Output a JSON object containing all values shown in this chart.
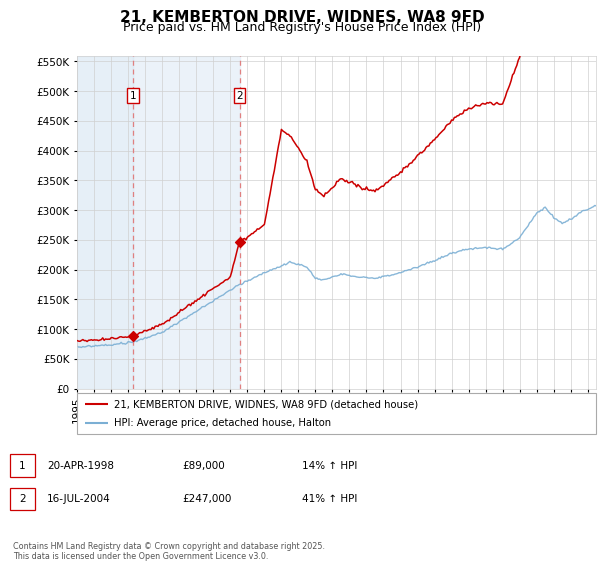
{
  "title": "21, KEMBERTON DRIVE, WIDNES, WA8 9FD",
  "subtitle": "Price paid vs. HM Land Registry's House Price Index (HPI)",
  "legend_line1": "21, KEMBERTON DRIVE, WIDNES, WA8 9FD (detached house)",
  "legend_line2": "HPI: Average price, detached house, Halton",
  "footnote": "Contains HM Land Registry data © Crown copyright and database right 2025.\nThis data is licensed under the Open Government Licence v3.0.",
  "sale1_date": "20-APR-1998",
  "sale1_price": "£89,000",
  "sale1_hpi": "14% ↑ HPI",
  "sale1_year": 1998.29,
  "sale1_value": 89000,
  "sale2_date": "16-JUL-2004",
  "sale2_price": "£247,000",
  "sale2_hpi": "41% ↑ HPI",
  "sale2_year": 2004.54,
  "sale2_value": 247000,
  "hpi_color": "#7bafd4",
  "price_color": "#cc0000",
  "vline_color": "#e08080",
  "highlight_color": "#dce9f5",
  "ylim_min": 0,
  "ylim_max": 560000,
  "ytick_step": 50000,
  "xmin": 1995.0,
  "xmax": 2025.5,
  "grid_color": "#d0d0d0",
  "title_fontsize": 11,
  "subtitle_fontsize": 9,
  "axis_fontsize": 7.5
}
